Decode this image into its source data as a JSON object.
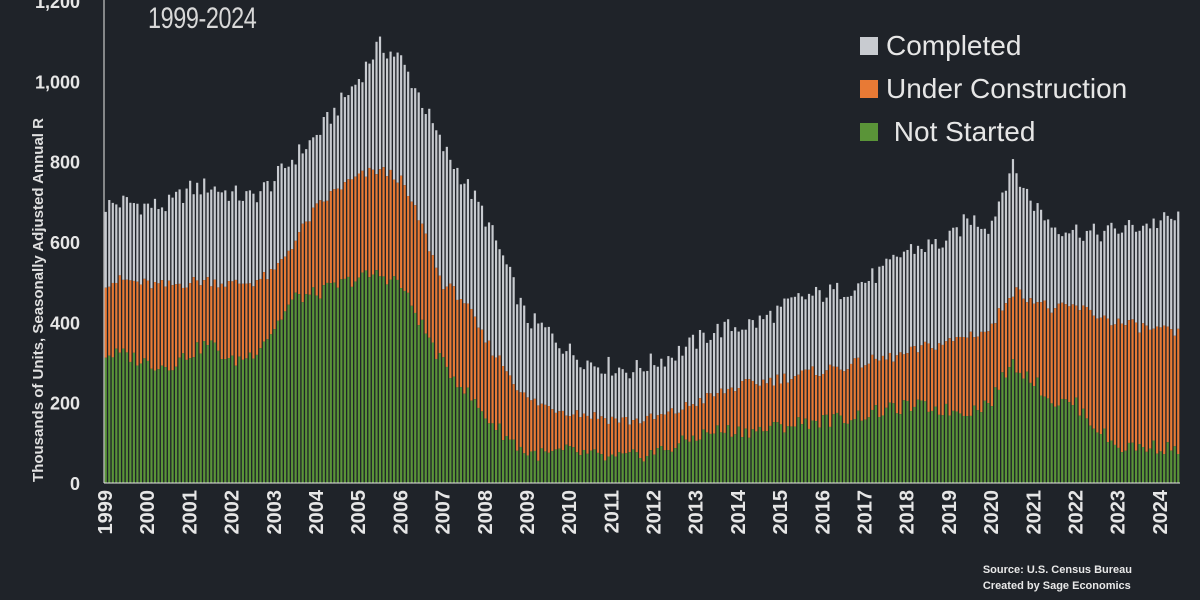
{
  "chart_data": {
    "type": "bar",
    "stacked": true,
    "subtitle": "1999-2024",
    "ylabel": "Thousands of Units, Seasonally Adjusted Annual R",
    "ylim": [
      0,
      1200
    ],
    "yticks": [
      "0",
      "200",
      "400",
      "600",
      "800",
      "1,000",
      "1,200"
    ],
    "ytick_values": [
      0,
      200,
      400,
      600,
      800,
      1000,
      1200
    ],
    "x_start": 1999.0,
    "x_end": 2024.5,
    "xticks": [
      "1999",
      "2000",
      "2001",
      "2002",
      "2003",
      "2004",
      "2005",
      "2006",
      "2007",
      "2008",
      "2009",
      "2010",
      "2011",
      "2012",
      "2013",
      "2014",
      "2015",
      "2016",
      "2017",
      "2018",
      "2019",
      "2020",
      "2021",
      "2022",
      "2023",
      "2024"
    ],
    "legend_position": "top-right",
    "anchors": {
      "x": [
        1999.0,
        1999.5,
        2000.0,
        2000.5,
        2001.0,
        2001.5,
        2002.0,
        2002.5,
        2003.0,
        2003.5,
        2004.0,
        2004.5,
        2005.0,
        2005.5,
        2006.0,
        2006.5,
        2007.0,
        2007.5,
        2008.0,
        2008.5,
        2009.0,
        2009.5,
        2010.0,
        2010.5,
        2011.0,
        2011.5,
        2012.0,
        2012.5,
        2013.0,
        2013.5,
        2014.0,
        2014.5,
        2015.0,
        2015.5,
        2016.0,
        2016.5,
        2017.0,
        2017.5,
        2018.0,
        2018.5,
        2019.0,
        2019.5,
        2020.0,
        2020.5,
        2021.0,
        2021.5,
        2022.0,
        2022.5,
        2023.0,
        2023.5,
        2024.0,
        2024.5
      ],
      "total": [
        690,
        700,
        690,
        690,
        730,
        740,
        720,
        710,
        750,
        810,
        860,
        930,
        1000,
        1090,
        1060,
        960,
        840,
        760,
        670,
        550,
        410,
        380,
        330,
        300,
        290,
        280,
        300,
        320,
        350,
        380,
        390,
        400,
        430,
        460,
        470,
        480,
        500,
        530,
        580,
        590,
        600,
        660,
        640,
        790,
        700,
        640,
        630,
        620,
        630,
        640,
        650,
        660
      ],
      "under_construction": [
        500,
        505,
        495,
        490,
        500,
        505,
        495,
        500,
        520,
        600,
        680,
        730,
        760,
        780,
        760,
        650,
        500,
        460,
        360,
        290,
        210,
        190,
        180,
        170,
        160,
        155,
        160,
        175,
        200,
        220,
        240,
        250,
        260,
        270,
        280,
        290,
        300,
        310,
        320,
        340,
        350,
        370,
        380,
        480,
        460,
        430,
        440,
        420,
        400,
        390,
        380,
        370
      ],
      "not_started": [
        320,
        320,
        300,
        290,
        320,
        350,
        300,
        320,
        380,
        460,
        470,
        490,
        510,
        520,
        500,
        400,
        300,
        240,
        170,
        120,
        75,
        70,
        80,
        70,
        60,
        65,
        75,
        90,
        115,
        130,
        130,
        130,
        140,
        150,
        155,
        160,
        170,
        180,
        190,
        190,
        180,
        180,
        200,
        300,
        260,
        200,
        200,
        140,
        90,
        90,
        90,
        85
      ]
    },
    "series": [
      {
        "name": "Completed",
        "color": "#c8cbd0"
      },
      {
        "name": "Under Construction",
        "color": "#e87a35"
      },
      {
        "name": "Not Started",
        "color": "#5a9438"
      }
    ]
  },
  "legend": {
    "items": [
      {
        "label": "Completed",
        "color": "#c8cbd0"
      },
      {
        "label": "Under Construction",
        "color": "#e87a35"
      },
      {
        "label": " Not Started",
        "color": "#5a9438"
      }
    ]
  },
  "source": {
    "line1": "Source: U.S. Census Bureau",
    "line2": "Created by Sage Economics"
  }
}
